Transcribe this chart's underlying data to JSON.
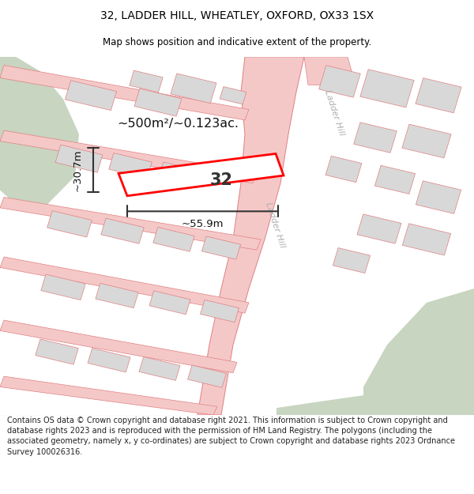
{
  "title": "32, LADDER HILL, WHEATLEY, OXFORD, OX33 1SX",
  "subtitle": "Map shows position and indicative extent of the property.",
  "footer": "Contains OS data © Crown copyright and database right 2021. This information is subject to Crown copyright and database rights 2023 and is reproduced with the permission of HM Land Registry. The polygons (including the associated geometry, namely x, y co-ordinates) are subject to Crown copyright and database rights 2023 Ordnance Survey 100026316.",
  "area_label": "~500m²/~0.123ac.",
  "width_label": "~55.9m",
  "height_label": "~30.7m",
  "plot_number": "32",
  "road_color": "#f5c8c8",
  "road_line_color": "#e08080",
  "highlight_color": "#ff0000",
  "building_color": "#d8d8d8",
  "green_color": "#c8d5c0",
  "title_fontsize": 10,
  "subtitle_fontsize": 8.5,
  "footer_fontsize": 7.0
}
